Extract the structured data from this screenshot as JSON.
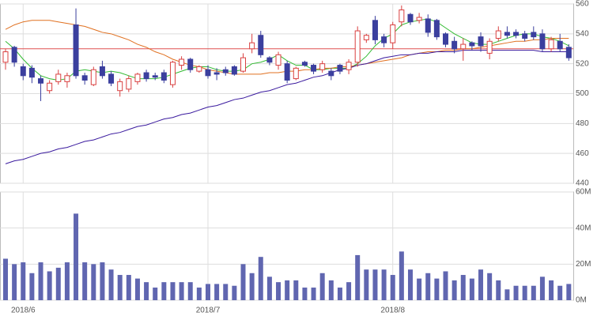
{
  "chart_data": [
    {
      "type": "candlestick",
      "open": [
        521,
        531,
        518,
        517,
        510,
        502,
        508,
        508,
        546,
        512,
        506,
        518,
        513,
        502,
        503,
        508,
        514,
        512,
        514,
        506,
        519,
        523,
        515,
        516,
        514,
        516,
        518,
        515,
        530,
        539,
        524,
        519,
        520,
        510,
        521,
        519,
        516,
        515,
        519,
        516,
        521,
        536,
        549,
        538,
        534,
        548,
        553,
        549,
        550,
        549,
        540,
        535,
        530,
        534,
        538,
        527,
        537,
        541,
        541,
        540,
        541,
        540,
        530,
        535,
        531
      ],
      "high": [
        530,
        532,
        520,
        519,
        512,
        509,
        516,
        514,
        557,
        514,
        518,
        522,
        515,
        510,
        512,
        514,
        516,
        514,
        516,
        522,
        525,
        524,
        519,
        519,
        517,
        518,
        519,
        527,
        540,
        542,
        525,
        528,
        522,
        518,
        522,
        520,
        522,
        517,
        520,
        523,
        545,
        540,
        552,
        540,
        548,
        559,
        554,
        554,
        553,
        550,
        541,
        538,
        537,
        535,
        541,
        537,
        545,
        545,
        543,
        542,
        545,
        543,
        538,
        540,
        533
      ],
      "low": [
        516,
        518,
        509,
        507,
        495,
        500,
        506,
        504,
        510,
        506,
        505,
        510,
        505,
        498,
        501,
        506,
        508,
        509,
        507,
        504,
        516,
        514,
        514,
        510,
        509,
        512,
        512,
        514,
        527,
        524,
        519,
        516,
        507,
        509,
        518,
        513,
        514,
        509,
        513,
        513,
        518,
        534,
        533,
        531,
        530,
        545,
        546,
        547,
        538,
        536,
        531,
        527,
        522,
        529,
        528,
        523,
        535,
        537,
        537,
        535,
        536,
        528,
        528,
        528,
        522
      ],
      "close": [
        528,
        521,
        512,
        511,
        507,
        507,
        513,
        512,
        512,
        509,
        516,
        512,
        507,
        508,
        510,
        513,
        510,
        511,
        509,
        521,
        523,
        516,
        518,
        512,
        513,
        514,
        513,
        524,
        534,
        526,
        521,
        526,
        509,
        517,
        519,
        515,
        520,
        512,
        515,
        521,
        542,
        539,
        536,
        534,
        546,
        556,
        548,
        551,
        541,
        538,
        533,
        530,
        533,
        532,
        532,
        535,
        542,
        539,
        539,
        537,
        538,
        530,
        536,
        530,
        524
      ],
      "up_color": "#d94040",
      "down_color": "#3b3f9e",
      "series": [
        {
          "color": "#33bb33",
          "values": [
            535,
            530,
            523,
            517,
            512,
            510,
            509,
            510,
            515,
            516,
            515,
            514,
            515,
            514,
            512,
            510,
            510,
            510,
            511,
            513,
            515,
            517,
            518,
            518,
            516,
            515,
            515,
            516,
            520,
            521,
            523,
            526,
            522,
            519,
            519,
            516,
            516,
            517,
            517,
            517,
            520,
            525,
            532,
            537,
            540,
            546,
            548,
            549,
            550,
            548,
            544,
            540,
            537,
            534,
            533,
            533,
            535,
            537,
            539,
            540,
            540,
            538,
            537,
            535,
            532
          ]
        },
        {
          "color": "#e07020",
          "values": [
            543,
            546,
            548,
            549,
            549,
            549,
            548,
            547,
            546,
            545,
            543,
            541,
            540,
            538,
            536,
            533,
            531,
            528,
            526,
            523,
            521,
            519,
            518,
            516,
            515,
            514,
            513,
            513,
            513,
            513,
            514,
            514,
            515,
            515,
            516,
            516,
            517,
            517,
            518,
            518,
            519,
            520,
            521,
            522,
            523,
            524,
            526,
            527,
            528,
            528,
            529,
            529,
            530,
            530,
            531,
            532,
            533,
            534,
            535,
            535,
            536,
            536,
            537,
            537,
            537
          ]
        },
        {
          "color": "#3a1a9e",
          "values": [
            453,
            455,
            456,
            458,
            460,
            461,
            463,
            464,
            466,
            468,
            469,
            471,
            473,
            474,
            476,
            478,
            479,
            481,
            483,
            484,
            486,
            487,
            489,
            491,
            492,
            494,
            496,
            497,
            499,
            501,
            502,
            504,
            506,
            507,
            509,
            511,
            512,
            514,
            516,
            517,
            519,
            520,
            522,
            524,
            525,
            526,
            526,
            527,
            527,
            528,
            528,
            528,
            529,
            529,
            529,
            529,
            529,
            529,
            529,
            529,
            529,
            528,
            528,
            528,
            528
          ]
        }
      ],
      "hline": {
        "value": 530,
        "color": "#e05050"
      },
      "ylim": [
        440,
        560
      ],
      "yticks": [
        440,
        460,
        480,
        500,
        520,
        540,
        560
      ],
      "grid": true
    },
    {
      "type": "bar",
      "categories": [
        null,
        null,
        "2018/6",
        null,
        null,
        null,
        null,
        null,
        null,
        null,
        null,
        null,
        null,
        null,
        null,
        null,
        null,
        null,
        null,
        null,
        null,
        null,
        null,
        "2018/7",
        null,
        null,
        null,
        null,
        null,
        null,
        null,
        null,
        null,
        null,
        null,
        null,
        null,
        null,
        null,
        null,
        null,
        null,
        null,
        null,
        "2018/8",
        null,
        null,
        null,
        null,
        null,
        null,
        null,
        null,
        null,
        null,
        null,
        null,
        null,
        null,
        null,
        null,
        null,
        null,
        null,
        null
      ],
      "values": [
        23,
        20,
        21,
        15,
        21,
        16,
        18,
        21,
        48,
        21,
        20,
        21,
        17,
        14,
        14,
        12,
        10,
        7,
        10,
        10,
        10,
        10,
        7,
        9,
        9,
        9,
        8,
        20,
        15,
        24,
        13,
        10,
        11,
        11,
        7,
        7,
        15,
        11,
        7,
        10,
        25,
        17,
        17,
        17,
        14,
        27,
        17,
        12,
        15,
        12,
        16,
        11,
        14,
        12,
        17,
        15,
        11,
        6,
        8,
        8,
        8,
        13,
        11,
        8,
        9
      ],
      "color": "#6066b0",
      "ylim": [
        0,
        60
      ],
      "yticks": [
        {
          "value": 0,
          "label": "0M"
        },
        {
          "value": 20,
          "label": "20M"
        },
        {
          "value": 40,
          "label": "40M"
        },
        {
          "value": 60,
          "label": "60M"
        }
      ],
      "grid": true
    }
  ]
}
